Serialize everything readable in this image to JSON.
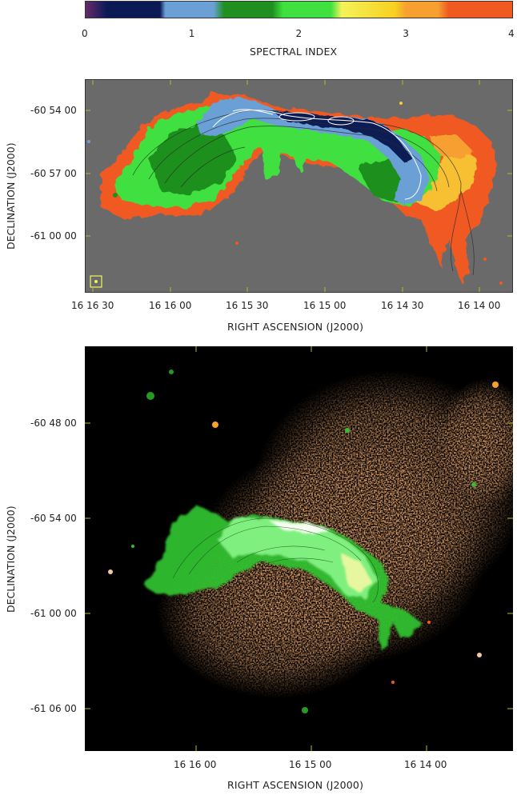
{
  "colorbar": {
    "label": "SPECTRAL INDEX",
    "ticks": [
      "0",
      "1",
      "2",
      "3",
      "4"
    ],
    "range": [
      0,
      4
    ],
    "stops": [
      {
        "value": 0.0,
        "color": "#6b2a6b"
      },
      {
        "value": 0.2,
        "color": "#0b1a55"
      },
      {
        "value": 0.7,
        "color": "#0b1a55"
      },
      {
        "value": 0.75,
        "color": "#6aa0d6"
      },
      {
        "value": 1.2,
        "color": "#6aa0d6"
      },
      {
        "value": 1.3,
        "color": "#1f8f1f"
      },
      {
        "value": 1.75,
        "color": "#1f8f1f"
      },
      {
        "value": 1.85,
        "color": "#3fe03f"
      },
      {
        "value": 2.3,
        "color": "#3fe03f"
      },
      {
        "value": 2.4,
        "color": "#f3f35a"
      },
      {
        "value": 2.9,
        "color": "#f7d020"
      },
      {
        "value": 3.0,
        "color": "#f7a030"
      },
      {
        "value": 3.3,
        "color": "#f7a030"
      },
      {
        "value": 3.4,
        "color": "#f05a20"
      },
      {
        "value": 4.0,
        "color": "#f05a20"
      }
    ]
  },
  "panel_top": {
    "ylabel": "DECLINATION (J2000)",
    "xlabel": "RIGHT ASCENSION (J2000)",
    "yticks": [
      "-60 54 00",
      "-60 57 00",
      "-61 00 00"
    ],
    "xticks": [
      "16 16 30",
      "16 16 00",
      "16 15 30",
      "16 15 00",
      "16 14 30",
      "16 14 00"
    ],
    "background": "#6a6a6a"
  },
  "panel_bottom": {
    "ylabel": "DECLINATION (J2000)",
    "xlabel": "RIGHT ASCENSION (J2000)",
    "yticks": [
      "-60 48 00",
      "-60 54 00",
      "-61 00 00",
      "-61 06 00"
    ],
    "xticks": [
      "16 16 00",
      "16 15 00",
      "16 14 00"
    ],
    "background": "#000000",
    "xray_color": "#e0642a",
    "radio_color": "#3fd83f"
  }
}
